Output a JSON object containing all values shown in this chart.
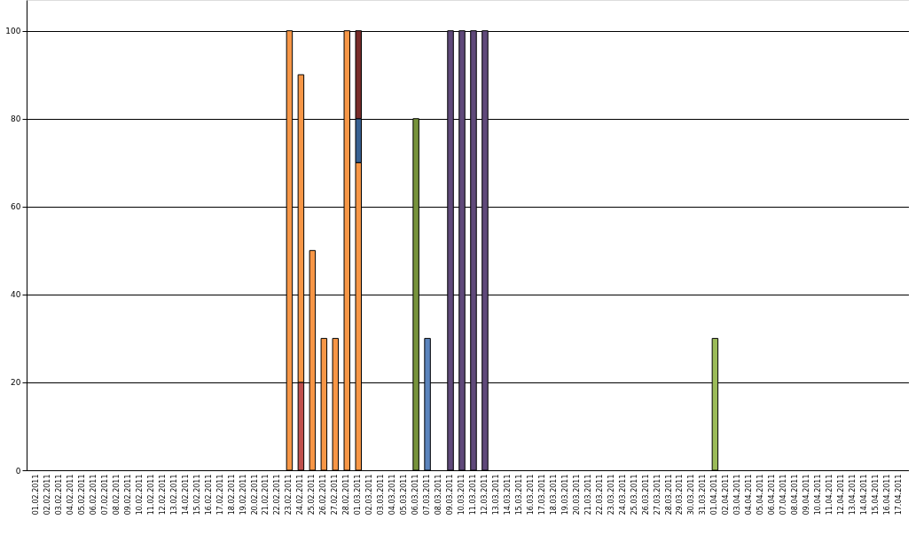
{
  "chart_data": {
    "type": "bar",
    "stacked": true,
    "categories": [
      "01.02.2011",
      "02.02.2011",
      "03.02.2011",
      "04.02.2011",
      "05.02.2011",
      "06.02.2011",
      "07.02.2011",
      "08.02.2011",
      "09.02.2011",
      "10.02.2011",
      "11.02.2011",
      "12.02.2011",
      "13.02.2011",
      "14.02.2011",
      "15.02.2011",
      "16.02.2011",
      "17.02.2011",
      "18.02.2011",
      "19.02.2011",
      "20.02.2011",
      "21.02.2011",
      "22.02.2011",
      "23.02.2011",
      "24.02.2011",
      "25.02.2011",
      "26.02.2011",
      "27.02.2011",
      "28.02.2011",
      "01.03.2011",
      "02.03.2011",
      "03.03.2011",
      "04.03.2011",
      "05.03.2011",
      "06.03.2011",
      "07.03.2011",
      "08.03.2011",
      "09.03.2011",
      "10.03.2011",
      "11.03.2011",
      "12.03.2011",
      "13.03.2011",
      "14.03.2011",
      "15.03.2011",
      "16.03.2011",
      "17.03.2011",
      "18.03.2011",
      "19.03.2011",
      "20.03.2011",
      "21.03.2011",
      "22.03.2011",
      "23.03.2011",
      "24.03.2011",
      "25.03.2011",
      "26.03.2011",
      "27.03.2011",
      "28.03.2011",
      "29.03.2011",
      "30.03.2011",
      "31.03.2011",
      "01.04.2011",
      "02.04.2011",
      "03.04.2011",
      "04.04.2011",
      "05.04.2011",
      "06.04.2011",
      "07.04.2011",
      "08.04.2011",
      "09.04.2011",
      "10.04.2011",
      "11.04.2011",
      "12.04.2011",
      "13.04.2011",
      "14.04.2011",
      "15.04.2011",
      "16.04.2011",
      "17.04.2011"
    ],
    "series": [
      {
        "color": "#c0504d",
        "values": [
          null,
          null,
          null,
          null,
          null,
          null,
          null,
          null,
          null,
          null,
          null,
          null,
          null,
          null,
          null,
          null,
          null,
          null,
          null,
          null,
          null,
          null,
          null,
          20,
          null,
          null,
          null,
          null,
          null,
          null,
          null,
          null,
          null,
          null,
          null,
          null,
          null,
          null,
          null,
          null,
          null,
          null,
          null,
          null,
          null,
          null,
          null,
          null,
          null,
          null,
          null,
          null,
          null,
          null,
          null,
          null,
          null,
          null,
          null,
          null,
          null,
          null,
          null,
          null,
          null,
          null,
          null,
          null,
          null,
          null,
          null,
          null,
          null,
          null,
          null,
          null
        ]
      },
      {
        "color": "#f79646",
        "values": [
          null,
          null,
          null,
          null,
          null,
          null,
          null,
          null,
          null,
          null,
          null,
          null,
          null,
          null,
          null,
          null,
          null,
          null,
          null,
          null,
          null,
          null,
          100,
          70,
          50,
          30,
          30,
          100,
          70,
          null,
          null,
          null,
          null,
          null,
          null,
          null,
          null,
          null,
          null,
          null,
          null,
          null,
          null,
          null,
          null,
          null,
          null,
          null,
          null,
          null,
          null,
          null,
          null,
          null,
          null,
          null,
          null,
          null,
          null,
          null,
          null,
          null,
          null,
          null,
          null,
          null,
          null,
          null,
          null,
          null,
          null,
          null,
          null,
          null,
          null,
          null
        ]
      },
      {
        "color": "#376092",
        "values": [
          null,
          null,
          null,
          null,
          null,
          null,
          null,
          null,
          null,
          null,
          null,
          null,
          null,
          null,
          null,
          null,
          null,
          null,
          null,
          null,
          null,
          null,
          null,
          null,
          null,
          null,
          null,
          null,
          10,
          null,
          null,
          null,
          null,
          null,
          null,
          null,
          null,
          null,
          null,
          null,
          null,
          null,
          null,
          null,
          null,
          null,
          null,
          null,
          null,
          null,
          null,
          null,
          null,
          null,
          null,
          null,
          null,
          null,
          null,
          null,
          null,
          null,
          null,
          null,
          null,
          null,
          null,
          null,
          null,
          null,
          null,
          null,
          null,
          null,
          null,
          null
        ]
      },
      {
        "color": "#772c2a",
        "values": [
          null,
          null,
          null,
          null,
          null,
          null,
          null,
          null,
          null,
          null,
          null,
          null,
          null,
          null,
          null,
          null,
          null,
          null,
          null,
          null,
          null,
          null,
          null,
          null,
          null,
          null,
          null,
          null,
          20,
          null,
          null,
          null,
          null,
          null,
          null,
          null,
          null,
          null,
          null,
          null,
          null,
          null,
          null,
          null,
          null,
          null,
          null,
          null,
          null,
          null,
          null,
          null,
          null,
          null,
          null,
          null,
          null,
          null,
          null,
          null,
          null,
          null,
          null,
          null,
          null,
          null,
          null,
          null,
          null,
          null,
          null,
          null,
          null,
          null,
          null,
          null
        ]
      },
      {
        "color": "#77933c",
        "values": [
          null,
          null,
          null,
          null,
          null,
          null,
          null,
          null,
          null,
          null,
          null,
          null,
          null,
          null,
          null,
          null,
          null,
          null,
          null,
          null,
          null,
          null,
          null,
          null,
          null,
          null,
          null,
          null,
          null,
          null,
          null,
          null,
          null,
          80,
          null,
          null,
          null,
          null,
          null,
          null,
          null,
          null,
          null,
          null,
          null,
          null,
          null,
          null,
          null,
          null,
          null,
          null,
          null,
          null,
          null,
          null,
          null,
          null,
          null,
          null,
          null,
          null,
          null,
          null,
          null,
          null,
          null,
          null,
          null,
          null,
          null,
          null,
          null,
          null,
          null,
          null
        ]
      },
      {
        "color": "#5b84bd",
        "values": [
          null,
          null,
          null,
          null,
          null,
          null,
          null,
          null,
          null,
          null,
          null,
          null,
          null,
          null,
          null,
          null,
          null,
          null,
          null,
          null,
          null,
          null,
          null,
          null,
          null,
          null,
          null,
          null,
          null,
          null,
          null,
          null,
          null,
          null,
          30,
          null,
          null,
          null,
          null,
          null,
          null,
          null,
          null,
          null,
          null,
          null,
          null,
          null,
          null,
          null,
          null,
          null,
          null,
          null,
          null,
          null,
          null,
          null,
          null,
          null,
          null,
          null,
          null,
          null,
          null,
          null,
          null,
          null,
          null,
          null,
          null,
          null,
          null,
          null,
          null,
          null
        ]
      },
      {
        "color": "#5f497a",
        "values": [
          null,
          null,
          null,
          null,
          null,
          null,
          null,
          null,
          null,
          null,
          null,
          null,
          null,
          null,
          null,
          null,
          null,
          null,
          null,
          null,
          null,
          null,
          null,
          null,
          null,
          null,
          null,
          null,
          null,
          null,
          null,
          null,
          null,
          null,
          null,
          null,
          100,
          100,
          100,
          100,
          null,
          null,
          null,
          null,
          null,
          null,
          null,
          null,
          null,
          null,
          null,
          null,
          null,
          null,
          null,
          null,
          null,
          null,
          null,
          null,
          null,
          null,
          null,
          null,
          null,
          null,
          null,
          null,
          null,
          null,
          null,
          null,
          null,
          null,
          null,
          null
        ]
      },
      {
        "color": "#9bbb59",
        "values": [
          null,
          null,
          null,
          null,
          null,
          null,
          null,
          null,
          null,
          null,
          null,
          null,
          null,
          null,
          null,
          null,
          null,
          null,
          null,
          null,
          null,
          null,
          null,
          null,
          null,
          null,
          null,
          null,
          null,
          null,
          null,
          null,
          null,
          null,
          null,
          null,
          null,
          null,
          null,
          null,
          null,
          null,
          null,
          null,
          null,
          null,
          null,
          null,
          null,
          null,
          null,
          null,
          null,
          null,
          null,
          null,
          null,
          null,
          null,
          30,
          null,
          null,
          null,
          null,
          null,
          null,
          null,
          null,
          null,
          null,
          null,
          null,
          null,
          null,
          null,
          null
        ]
      }
    ],
    "ylim": [
      0,
      107
    ],
    "yticks": [
      0,
      20,
      40,
      60,
      80,
      100
    ],
    "grid": "y",
    "legend": false
  }
}
